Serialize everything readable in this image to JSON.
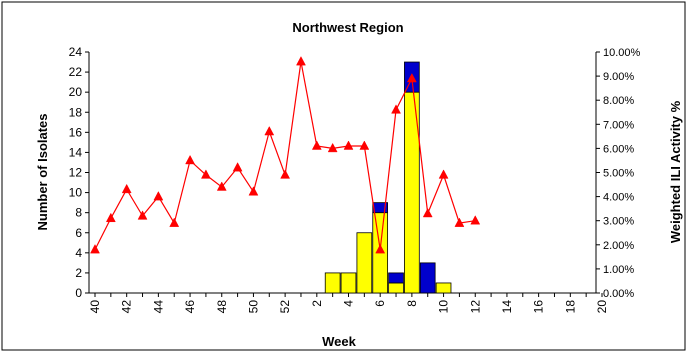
{
  "chart_data": {
    "type": "bar",
    "title": "Northwest Region",
    "xlabel": "Week",
    "ylabel": "Number of Isolates",
    "y2label": "Weighted ILI Activity %",
    "ylim": [
      0,
      24
    ],
    "y2lim": [
      0,
      10
    ],
    "yticks": [
      0,
      2,
      4,
      6,
      8,
      10,
      12,
      14,
      16,
      18,
      20,
      22,
      24
    ],
    "y2ticks": [
      "0.00%",
      "1.00%",
      "2.00%",
      "3.00%",
      "4.00%",
      "5.00%",
      "6.00%",
      "7.00%",
      "8.00%",
      "9.00%",
      "10.00%"
    ],
    "categories": [
      "40",
      "41",
      "42",
      "43",
      "44",
      "45",
      "46",
      "47",
      "48",
      "49",
      "50",
      "51",
      "52",
      "1",
      "2",
      "3",
      "4",
      "5",
      "6",
      "7",
      "8",
      "9",
      "10",
      "11",
      "12",
      "13",
      "14",
      "15",
      "16",
      "17",
      "18",
      "19",
      "20"
    ],
    "xtick_labels": [
      "40",
      "42",
      "44",
      "46",
      "48",
      "50",
      "52",
      "2",
      "4",
      "6",
      "8",
      "10",
      "12",
      "14",
      "16",
      "18",
      "20"
    ],
    "series": [
      {
        "kind": "stacked-bar",
        "color": "#ffff00",
        "values": [
          0,
          0,
          0,
          0,
          0,
          0,
          0,
          0,
          0,
          0,
          0,
          0,
          0,
          0,
          0,
          2,
          2,
          6,
          8,
          1,
          20,
          0,
          1,
          0,
          0,
          0,
          0,
          0,
          0,
          0,
          0,
          0,
          0
        ]
      },
      {
        "kind": "stacked-bar",
        "color": "#0000cc",
        "values": [
          0,
          0,
          0,
          0,
          0,
          0,
          0,
          0,
          0,
          0,
          0,
          0,
          0,
          0,
          0,
          0,
          0,
          0,
          1,
          1,
          3,
          3,
          0,
          0,
          0,
          0,
          0,
          0,
          0,
          0,
          0,
          0,
          0
        ]
      },
      {
        "kind": "line",
        "axis": "right",
        "color": "#ff0000",
        "values": [
          1.8,
          3.1,
          4.3,
          3.2,
          4.0,
          2.9,
          5.5,
          4.9,
          4.4,
          5.2,
          4.2,
          6.7,
          4.9,
          9.6,
          6.1,
          6.0,
          6.1,
          6.1,
          1.8,
          7.6,
          8.9,
          3.3,
          4.9,
          2.9,
          3.0,
          null,
          null,
          null,
          null,
          null,
          null,
          null,
          null
        ]
      }
    ],
    "grid": false,
    "legend": "none"
  }
}
